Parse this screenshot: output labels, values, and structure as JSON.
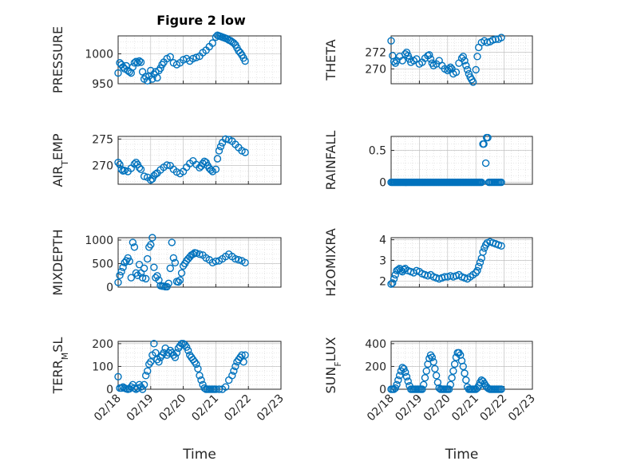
{
  "figure": {
    "title": "Figure 2 low",
    "marker_color": "#0072BD"
  },
  "chart_data": [
    {
      "type": "scatter",
      "ylabel": "PRESSURE",
      "xlabel": "",
      "ylim": [
        950,
        1030
      ],
      "yticks": [
        950,
        1000
      ],
      "xlim": [
        "02/18",
        "02/23"
      ],
      "x_day_start": 18,
      "xticks": [
        "02/18",
        "02/19",
        "02/20",
        "02/21",
        "02/22",
        "02/23"
      ],
      "x": [
        18.0,
        18.05,
        18.1,
        18.15,
        18.2,
        18.25,
        18.3,
        18.35,
        18.4,
        18.45,
        18.5,
        18.55,
        18.6,
        18.65,
        18.7,
        18.75,
        18.8,
        18.85,
        18.9,
        18.95,
        19.0,
        19.05,
        19.1,
        19.15,
        19.2,
        19.25,
        19.3,
        19.35,
        19.4,
        19.5,
        19.6,
        19.7,
        19.8,
        19.9,
        20.0,
        20.1,
        20.2,
        20.3,
        20.4,
        20.5,
        20.6,
        20.7,
        20.8,
        20.9,
        21.0,
        21.05,
        21.1,
        21.15,
        21.2,
        21.25,
        21.3,
        21.35,
        21.4,
        21.45,
        21.5,
        21.55,
        21.6,
        21.65,
        21.7,
        21.75,
        21.8,
        21.85,
        21.9
      ],
      "y": [
        968,
        985,
        982,
        978,
        975,
        980,
        972,
        970,
        968,
        978,
        985,
        987,
        985,
        988,
        986,
        970,
        958,
        962,
        955,
        963,
        972,
        958,
        966,
        970,
        960,
        972,
        976,
        982,
        986,
        992,
        995,
        985,
        982,
        985,
        990,
        992,
        988,
        992,
        994,
        996,
        1002,
        1006,
        1012,
        1018,
        1028,
        1031,
        1030,
        1029,
        1028,
        1027,
        1026,
        1025,
        1023,
        1022,
        1020,
        1018,
        1015,
        1010,
        1005,
        1002,
        998,
        993,
        988
      ]
    },
    {
      "type": "scatter",
      "ylabel": "THETA",
      "xlabel": "",
      "ylim": [
        268.2,
        274.0
      ],
      "yticks": [
        270,
        272
      ],
      "xlim": [
        "02/18",
        "02/23"
      ],
      "x_day_start": 18,
      "xticks": [
        "02/18",
        "02/19",
        "02/20",
        "02/21",
        "02/22",
        "02/23"
      ],
      "x": [
        18.0,
        18.05,
        18.1,
        18.15,
        18.2,
        18.3,
        18.4,
        18.5,
        18.55,
        18.6,
        18.65,
        18.7,
        18.8,
        18.9,
        19.0,
        19.1,
        19.2,
        19.3,
        19.35,
        19.4,
        19.45,
        19.5,
        19.6,
        19.7,
        19.8,
        19.9,
        20.0,
        20.05,
        20.1,
        20.15,
        20.2,
        20.3,
        20.4,
        20.5,
        20.55,
        20.6,
        20.65,
        20.7,
        20.75,
        20.8,
        20.85,
        20.9,
        21.0,
        21.05,
        21.1,
        21.2,
        21.3,
        21.4,
        21.5,
        21.6,
        21.7,
        21.8,
        21.9
      ],
      "y": [
        273.4,
        271.6,
        270.9,
        270.7,
        271.0,
        271.5,
        271.0,
        271.8,
        272.0,
        271.6,
        271.2,
        270.8,
        271.0,
        271.2,
        270.6,
        270.8,
        271.3,
        271.6,
        271.7,
        271.2,
        270.7,
        270.4,
        270.6,
        271.0,
        270.4,
        270.0,
        269.8,
        270.0,
        270.2,
        270.0,
        269.4,
        269.6,
        270.7,
        271.3,
        271.5,
        271.0,
        270.4,
        269.9,
        269.4,
        269.0,
        268.7,
        268.4,
        269.9,
        271.5,
        272.6,
        273.2,
        273.4,
        273.2,
        273.3,
        273.5,
        273.6,
        273.6,
        273.8
      ]
    },
    {
      "type": "scatter",
      "ylabel": "AIR_TEMP",
      "xlabel": "",
      "ylim": [
        266.5,
        275.5
      ],
      "yticks": [
        270,
        275
      ],
      "xlim": [
        "02/18",
        "02/23"
      ],
      "x_day_start": 18,
      "xticks": [
        "02/18",
        "02/19",
        "02/20",
        "02/21",
        "02/22",
        "02/23"
      ],
      "x": [
        18.0,
        18.05,
        18.1,
        18.15,
        18.2,
        18.3,
        18.4,
        18.5,
        18.55,
        18.6,
        18.65,
        18.7,
        18.8,
        18.9,
        19.0,
        19.05,
        19.1,
        19.15,
        19.2,
        19.3,
        19.4,
        19.5,
        19.6,
        19.7,
        19.8,
        19.9,
        20.0,
        20.1,
        20.2,
        20.3,
        20.4,
        20.5,
        20.55,
        20.6,
        20.65,
        20.7,
        20.75,
        20.8,
        20.85,
        20.9,
        21.0,
        21.05,
        21.1,
        21.15,
        21.2,
        21.3,
        21.4,
        21.5,
        21.6,
        21.7,
        21.8,
        21.9
      ],
      "y": [
        270.6,
        270.2,
        269.3,
        269.0,
        269.1,
        268.9,
        269.5,
        270.3,
        270.6,
        270.2,
        269.6,
        269.3,
        268.0,
        267.8,
        267.3,
        267.5,
        268.1,
        268.4,
        268.6,
        269.2,
        269.7,
        270.1,
        270.0,
        269.3,
        268.8,
        268.5,
        268.9,
        269.7,
        270.4,
        270.9,
        270.2,
        269.6,
        269.9,
        270.4,
        270.8,
        270.6,
        270.0,
        269.5,
        269.2,
        268.9,
        269.3,
        271.3,
        272.8,
        273.6,
        274.3,
        275.0,
        274.9,
        274.6,
        274.0,
        273.4,
        272.8,
        272.5
      ]
    },
    {
      "type": "scatter",
      "ylabel": "RAINFALL",
      "xlabel": "",
      "ylim": [
        -0.03,
        0.72
      ],
      "yticks": [
        0,
        0.5
      ],
      "xlim": [
        "02/18",
        "02/23"
      ],
      "x_day_start": 18,
      "xticks": [
        "02/18",
        "02/19",
        "02/20",
        "02/21",
        "02/22",
        "02/23"
      ],
      "x": [
        18.0,
        18.04,
        18.08,
        18.12,
        18.16,
        18.2,
        18.24,
        18.28,
        18.32,
        18.36,
        18.4,
        18.44,
        18.48,
        18.52,
        18.56,
        18.6,
        18.64,
        18.68,
        18.72,
        18.76,
        18.8,
        18.84,
        18.88,
        18.92,
        18.96,
        19.0,
        19.04,
        19.08,
        19.12,
        19.16,
        19.2,
        19.24,
        19.28,
        19.32,
        19.36,
        19.4,
        19.44,
        19.48,
        19.52,
        19.56,
        19.6,
        19.64,
        19.68,
        19.72,
        19.76,
        19.8,
        19.84,
        19.88,
        19.92,
        19.96,
        20.0,
        20.04,
        20.08,
        20.12,
        20.16,
        20.2,
        20.24,
        20.28,
        20.32,
        20.36,
        20.4,
        20.44,
        20.48,
        20.52,
        20.56,
        20.6,
        20.64,
        20.68,
        20.72,
        20.76,
        20.8,
        20.84,
        20.88,
        20.92,
        20.96,
        21.0,
        21.04,
        21.08,
        21.12,
        21.16,
        21.2,
        21.25,
        21.28,
        21.35,
        21.38,
        21.42,
        21.46,
        21.5,
        21.55,
        21.6,
        21.65,
        21.7,
        21.75,
        21.8,
        21.85,
        21.9
      ],
      "y": [
        0,
        0,
        0,
        0,
        0,
        0,
        0,
        0,
        0,
        0,
        0,
        0,
        0,
        0,
        0,
        0,
        0,
        0,
        0,
        0,
        0,
        0,
        0,
        0,
        0,
        0,
        0,
        0,
        0,
        0,
        0,
        0,
        0,
        0,
        0,
        0,
        0,
        0,
        0,
        0,
        0,
        0,
        0,
        0,
        0,
        0,
        0,
        0,
        0,
        0,
        0,
        0,
        0,
        0,
        0,
        0,
        0,
        0,
        0,
        0,
        0,
        0,
        0,
        0,
        0,
        0,
        0,
        0,
        0,
        0,
        0,
        0,
        0,
        0,
        0,
        0,
        0,
        0,
        0,
        0,
        0,
        0.6,
        0.6,
        0.3,
        0.7,
        0.7,
        0,
        0,
        0,
        0,
        0,
        0,
        0,
        0,
        0,
        0
      ]
    },
    {
      "type": "scatter",
      "ylabel": "MIXDEPTH",
      "xlabel": "",
      "ylim": [
        0,
        1050
      ],
      "yticks": [
        0,
        500,
        1000
      ],
      "xlim": [
        "02/18",
        "02/23"
      ],
      "x_day_start": 18,
      "xticks": [
        "02/18",
        "02/19",
        "02/20",
        "02/21",
        "02/22",
        "02/23"
      ],
      "x": [
        18.0,
        18.05,
        18.1,
        18.15,
        18.2,
        18.25,
        18.3,
        18.35,
        18.4,
        18.45,
        18.5,
        18.55,
        18.6,
        18.65,
        18.7,
        18.75,
        18.8,
        18.85,
        18.9,
        18.95,
        19.0,
        19.05,
        19.1,
        19.15,
        19.2,
        19.25,
        19.3,
        19.35,
        19.4,
        19.45,
        19.5,
        19.55,
        19.6,
        19.65,
        19.7,
        19.75,
        19.8,
        19.85,
        19.9,
        19.95,
        20.0,
        20.05,
        20.1,
        20.15,
        20.2,
        20.25,
        20.3,
        20.35,
        20.4,
        20.5,
        20.6,
        20.7,
        20.8,
        20.9,
        21.0,
        21.1,
        21.2,
        21.3,
        21.4,
        21.5,
        21.6,
        21.7,
        21.8,
        21.9
      ],
      "y": [
        100,
        250,
        330,
        420,
        520,
        560,
        620,
        550,
        200,
        950,
        850,
        300,
        250,
        480,
        300,
        200,
        400,
        180,
        600,
        850,
        900,
        1050,
        420,
        200,
        240,
        150,
        30,
        20,
        20,
        10,
        10,
        80,
        400,
        950,
        620,
        520,
        120,
        110,
        150,
        300,
        450,
        500,
        560,
        600,
        640,
        680,
        700,
        730,
        720,
        700,
        680,
        620,
        580,
        520,
        550,
        560,
        600,
        650,
        700,
        650,
        600,
        580,
        560,
        520
      ]
    },
    {
      "type": "scatter",
      "ylabel": "H2OMIXRA",
      "xlabel": "",
      "ylim": [
        1.7,
        4.1
      ],
      "yticks": [
        2,
        3,
        4
      ],
      "xlim": [
        "02/18",
        "02/23"
      ],
      "x_day_start": 18,
      "xticks": [
        "02/18",
        "02/19",
        "02/20",
        "02/21",
        "02/22",
        "02/23"
      ],
      "x": [
        18.0,
        18.05,
        18.1,
        18.15,
        18.2,
        18.25,
        18.3,
        18.35,
        18.4,
        18.45,
        18.5,
        18.6,
        18.7,
        18.8,
        18.9,
        19.0,
        19.1,
        19.2,
        19.3,
        19.4,
        19.5,
        19.6,
        19.7,
        19.8,
        19.9,
        20.0,
        20.1,
        20.2,
        20.3,
        20.4,
        20.5,
        20.6,
        20.7,
        20.8,
        20.9,
        21.0,
        21.05,
        21.1,
        21.15,
        21.2,
        21.25,
        21.3,
        21.35,
        21.4,
        21.5,
        21.6,
        21.7,
        21.8,
        21.9
      ],
      "y": [
        1.85,
        1.9,
        2.1,
        2.3,
        2.5,
        2.55,
        2.6,
        2.5,
        2.45,
        2.55,
        2.6,
        2.5,
        2.45,
        2.4,
        2.5,
        2.45,
        2.35,
        2.3,
        2.25,
        2.3,
        2.2,
        2.15,
        2.1,
        2.15,
        2.2,
        2.2,
        2.25,
        2.2,
        2.25,
        2.3,
        2.2,
        2.15,
        2.1,
        2.2,
        2.3,
        2.4,
        2.5,
        2.7,
        2.9,
        3.1,
        3.4,
        3.6,
        3.75,
        3.85,
        3.9,
        3.85,
        3.8,
        3.75,
        3.7
      ]
    },
    {
      "type": "scatter",
      "ylabel": "TERR_MSL",
      "xlabel": "Time",
      "ylim": [
        0,
        210
      ],
      "yticks": [
        0,
        100,
        200
      ],
      "xlim": [
        "02/18",
        "02/23"
      ],
      "x_day_start": 18,
      "xticks": [
        "02/18",
        "02/19",
        "02/20",
        "02/21",
        "02/22",
        "02/23"
      ],
      "x": [
        18.0,
        18.05,
        18.1,
        18.15,
        18.2,
        18.25,
        18.3,
        18.35,
        18.4,
        18.45,
        18.5,
        18.55,
        18.6,
        18.65,
        18.7,
        18.75,
        18.8,
        18.85,
        18.9,
        18.95,
        19.0,
        19.05,
        19.1,
        19.15,
        19.2,
        19.25,
        19.3,
        19.35,
        19.4,
        19.45,
        19.5,
        19.55,
        19.6,
        19.65,
        19.7,
        19.75,
        19.8,
        19.85,
        19.9,
        19.95,
        20.0,
        20.05,
        20.1,
        20.15,
        20.2,
        20.25,
        20.3,
        20.35,
        20.4,
        20.45,
        20.5,
        20.55,
        20.6,
        20.65,
        20.7,
        20.75,
        20.8,
        20.85,
        20.9,
        20.95,
        21.0,
        21.1,
        21.2,
        21.3,
        21.4,
        21.5,
        21.55,
        21.6,
        21.65,
        21.7,
        21.75,
        21.8,
        21.85,
        21.9
      ],
      "y": [
        55,
        5,
        5,
        10,
        5,
        2,
        0,
        2,
        10,
        20,
        5,
        0,
        5,
        20,
        10,
        0,
        20,
        60,
        80,
        110,
        120,
        150,
        200,
        160,
        130,
        120,
        140,
        150,
        160,
        180,
        150,
        160,
        170,
        160,
        150,
        140,
        160,
        180,
        190,
        200,
        200,
        195,
        185,
        170,
        150,
        140,
        130,
        120,
        110,
        90,
        60,
        40,
        20,
        5,
        0,
        0,
        0,
        0,
        0,
        0,
        0,
        0,
        0,
        10,
        40,
        60,
        80,
        100,
        120,
        130,
        140,
        150,
        120,
        150
      ]
    },
    {
      "type": "scatter",
      "ylabel": "SUN_FLUX",
      "xlabel": "Time",
      "ylim": [
        0,
        420
      ],
      "yticks": [
        0,
        200,
        400
      ],
      "xlim": [
        "02/18",
        "02/23"
      ],
      "x_day_start": 18,
      "xticks": [
        "02/18",
        "02/19",
        "02/20",
        "02/21",
        "02/22",
        "02/23"
      ],
      "x": [
        18.0,
        18.05,
        18.1,
        18.15,
        18.2,
        18.25,
        18.3,
        18.35,
        18.4,
        18.45,
        18.5,
        18.55,
        18.6,
        18.65,
        18.7,
        18.75,
        18.8,
        18.85,
        18.9,
        18.95,
        19.0,
        19.05,
        19.1,
        19.15,
        19.2,
        19.25,
        19.3,
        19.35,
        19.4,
        19.45,
        19.5,
        19.55,
        19.6,
        19.65,
        19.7,
        19.75,
        19.8,
        19.85,
        19.9,
        19.95,
        20.0,
        20.05,
        20.1,
        20.15,
        20.2,
        20.25,
        20.3,
        20.35,
        20.4,
        20.45,
        20.5,
        20.55,
        20.6,
        20.65,
        20.7,
        20.75,
        20.8,
        20.85,
        20.9,
        20.95,
        21.0,
        21.05,
        21.1,
        21.15,
        21.2,
        21.25,
        21.3,
        21.35,
        21.4,
        21.45,
        21.5,
        21.55,
        21.6,
        21.65,
        21.7,
        21.75,
        21.8,
        21.85,
        21.9
      ],
      "y": [
        0,
        0,
        0,
        10,
        40,
        80,
        120,
        160,
        190,
        180,
        150,
        110,
        70,
        30,
        0,
        0,
        0,
        0,
        0,
        0,
        0,
        0,
        0,
        40,
        100,
        160,
        220,
        270,
        300,
        280,
        240,
        180,
        120,
        60,
        10,
        0,
        0,
        0,
        0,
        0,
        0,
        0,
        40,
        100,
        160,
        220,
        280,
        320,
        320,
        300,
        250,
        200,
        140,
        80,
        20,
        0,
        0,
        0,
        0,
        0,
        0,
        10,
        30,
        60,
        80,
        70,
        50,
        30,
        15,
        5,
        0,
        0,
        0,
        0,
        0,
        0,
        0,
        0,
        0
      ]
    }
  ]
}
